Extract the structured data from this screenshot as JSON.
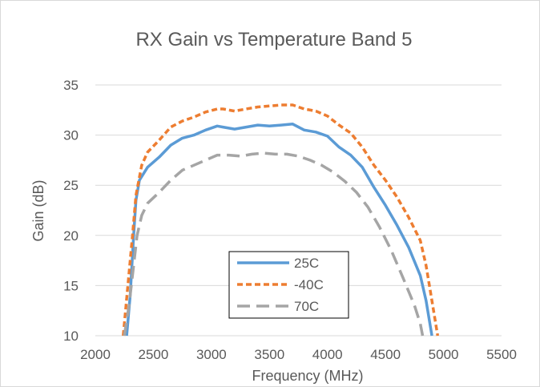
{
  "chart_data": {
    "type": "line",
    "title": "RX Gain vs Temperature Band 5",
    "xlabel": "Frequency (MHz)",
    "ylabel": "Gain (dB)",
    "xlim": [
      2000,
      5500
    ],
    "ylim": [
      10,
      35
    ],
    "x_ticks": [
      2000,
      2500,
      3000,
      3500,
      4000,
      4500,
      5000,
      5500
    ],
    "y_ticks": [
      10,
      15,
      20,
      25,
      30,
      35
    ],
    "grid": "horizontal",
    "legend_position": "center-bottom",
    "series": [
      {
        "name": "25C",
        "color": "#5b9bd5",
        "dash": "solid",
        "points": [
          [
            2270,
            10
          ],
          [
            2300,
            14
          ],
          [
            2330,
            20
          ],
          [
            2350,
            23.5
          ],
          [
            2380,
            25.5
          ],
          [
            2450,
            26.8
          ],
          [
            2550,
            27.8
          ],
          [
            2650,
            29
          ],
          [
            2750,
            29.7
          ],
          [
            2850,
            30
          ],
          [
            2950,
            30.5
          ],
          [
            3050,
            30.9
          ],
          [
            3100,
            30.8
          ],
          [
            3200,
            30.6
          ],
          [
            3300,
            30.8
          ],
          [
            3400,
            31
          ],
          [
            3500,
            30.9
          ],
          [
            3600,
            31
          ],
          [
            3700,
            31.1
          ],
          [
            3800,
            30.5
          ],
          [
            3900,
            30.3
          ],
          [
            4000,
            29.9
          ],
          [
            4100,
            28.8
          ],
          [
            4200,
            28
          ],
          [
            4300,
            26.8
          ],
          [
            4400,
            24.8
          ],
          [
            4500,
            23
          ],
          [
            4600,
            21
          ],
          [
            4700,
            18.8
          ],
          [
            4800,
            16
          ],
          [
            4850,
            13.5
          ],
          [
            4900,
            10
          ]
        ]
      },
      {
        "name": "-40C",
        "color": "#ed7d31",
        "dash": "dash",
        "points": [
          [
            2240,
            10
          ],
          [
            2280,
            15
          ],
          [
            2320,
            20
          ],
          [
            2350,
            24
          ],
          [
            2400,
            27
          ],
          [
            2450,
            28.3
          ],
          [
            2550,
            29.5
          ],
          [
            2650,
            30.8
          ],
          [
            2750,
            31.4
          ],
          [
            2850,
            31.8
          ],
          [
            2950,
            32.3
          ],
          [
            3050,
            32.6
          ],
          [
            3100,
            32.6
          ],
          [
            3200,
            32.4
          ],
          [
            3300,
            32.6
          ],
          [
            3400,
            32.8
          ],
          [
            3500,
            32.9
          ],
          [
            3600,
            33
          ],
          [
            3700,
            33
          ],
          [
            3800,
            32.6
          ],
          [
            3900,
            32.4
          ],
          [
            4000,
            31.9
          ],
          [
            4100,
            31
          ],
          [
            4200,
            30.2
          ],
          [
            4300,
            28.8
          ],
          [
            4400,
            27
          ],
          [
            4500,
            25.5
          ],
          [
            4600,
            23.8
          ],
          [
            4700,
            21.8
          ],
          [
            4800,
            19.5
          ],
          [
            4850,
            17
          ],
          [
            4900,
            13.5
          ],
          [
            4950,
            10
          ]
        ]
      },
      {
        "name": "70C",
        "color": "#a5a5a5",
        "dash": "longdash",
        "points": [
          [
            2250,
            10
          ],
          [
            2290,
            13
          ],
          [
            2330,
            17
          ],
          [
            2360,
            20
          ],
          [
            2400,
            22
          ],
          [
            2450,
            23.2
          ],
          [
            2550,
            24.3
          ],
          [
            2650,
            25.5
          ],
          [
            2750,
            26.5
          ],
          [
            2850,
            27
          ],
          [
            2950,
            27.5
          ],
          [
            3050,
            28
          ],
          [
            3150,
            28
          ],
          [
            3250,
            27.9
          ],
          [
            3350,
            28.1
          ],
          [
            3450,
            28.2
          ],
          [
            3550,
            28.1
          ],
          [
            3650,
            28.1
          ],
          [
            3750,
            27.9
          ],
          [
            3850,
            27.5
          ],
          [
            3950,
            27
          ],
          [
            4050,
            26.3
          ],
          [
            4150,
            25.4
          ],
          [
            4250,
            24.3
          ],
          [
            4350,
            22.8
          ],
          [
            4450,
            20.8
          ],
          [
            4550,
            18.5
          ],
          [
            4650,
            15.8
          ],
          [
            4750,
            13
          ],
          [
            4800,
            11.2
          ],
          [
            4820,
            10
          ]
        ]
      }
    ]
  }
}
